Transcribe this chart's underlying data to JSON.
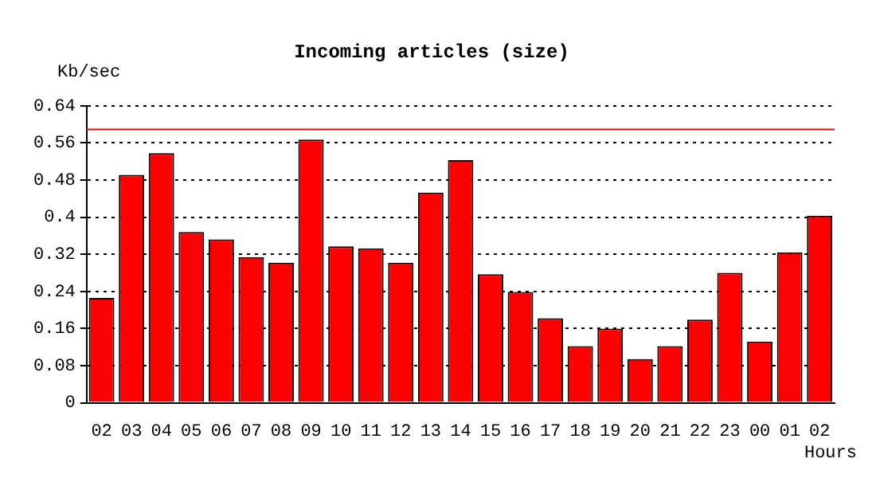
{
  "chart_data": {
    "type": "bar",
    "title": "Incoming articles (size)",
    "ylabel": "Kb/sec",
    "xlabel": "Hours",
    "categories": [
      "02",
      "03",
      "04",
      "05",
      "06",
      "07",
      "08",
      "09",
      "10",
      "11",
      "12",
      "13",
      "14",
      "15",
      "16",
      "17",
      "18",
      "19",
      "20",
      "21",
      "22",
      "23",
      "00",
      "01",
      "02"
    ],
    "values": [
      0.226,
      0.491,
      0.538,
      0.368,
      0.352,
      0.314,
      0.302,
      0.567,
      0.337,
      0.333,
      0.302,
      0.453,
      0.523,
      0.277,
      0.239,
      0.182,
      0.122,
      0.16,
      0.094,
      0.122,
      0.179,
      0.28,
      0.132,
      0.324,
      0.403
    ],
    "color": "#ff0000",
    "ylim": [
      0,
      0.64
    ],
    "yticks": [
      0,
      0.08,
      0.16,
      0.24,
      0.32,
      0.4,
      0.48,
      0.56,
      0.64
    ],
    "grid": "y",
    "ref_lines": [
      {
        "axis": "y",
        "value": 0.589,
        "color": "#ff0000"
      }
    ]
  }
}
